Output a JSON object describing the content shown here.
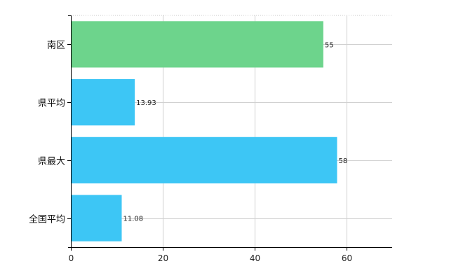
{
  "chart_data": {
    "type": "bar",
    "orientation": "horizontal",
    "title": "",
    "xlabel": "",
    "ylabel": "",
    "categories": [
      "南区",
      "県平均",
      "県最大",
      "全国平均"
    ],
    "values": [
      55,
      13.93,
      58,
      11.08
    ],
    "value_labels": [
      "55",
      "13.93",
      "58",
      "11.08"
    ],
    "bar_colors": [
      "#6dd48c",
      "#3dc6f5",
      "#3dc6f5",
      "#3dc6f5"
    ],
    "xlim": [
      0,
      70
    ],
    "xticks": [
      0,
      20,
      40,
      60
    ],
    "grid": true,
    "legend": "none"
  }
}
